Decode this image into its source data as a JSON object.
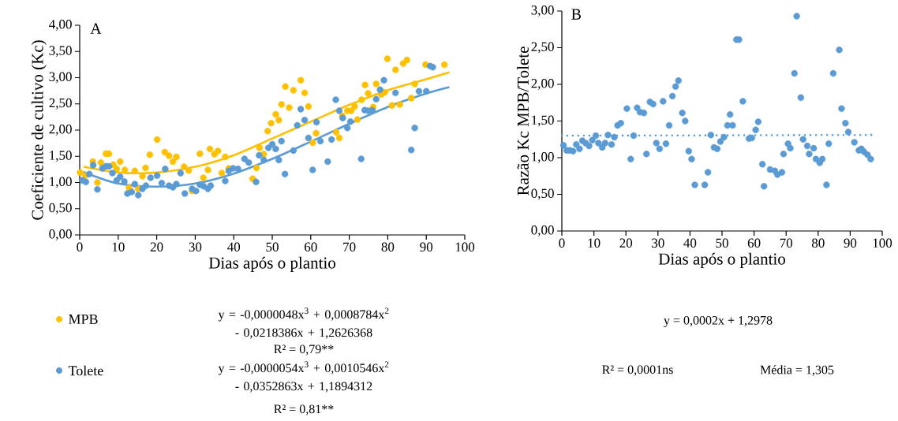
{
  "chart_data": [
    {
      "type": "scatter",
      "title": "A",
      "xlabel": "Dias após o plantio",
      "ylabel": "Coeficiente de cultivo (Kc)",
      "legend": "bottom",
      "xlim": [
        0,
        100
      ],
      "ylim": [
        0,
        4
      ],
      "xticks": [
        0,
        10,
        20,
        30,
        40,
        50,
        60,
        70,
        80,
        90,
        100
      ],
      "yticks": [
        {
          "value": 0,
          "label": "0,00"
        },
        {
          "value": 0.5,
          "label": "0,50"
        },
        {
          "value": 1,
          "label": "1,00"
        },
        {
          "value": 1.5,
          "label": "1,50"
        },
        {
          "value": 2,
          "label": "2,00"
        },
        {
          "value": 2.5,
          "label": "2,50"
        },
        {
          "value": 3,
          "label": "3,00"
        },
        {
          "value": 3.5,
          "label": "3,50"
        },
        {
          "value": 4,
          "label": "4,00"
        }
      ],
      "annotations": [
        "y = -0,0000048x$^{3}$ + 0,0008784x$^{2}$ - 0,0218386x + 1,2626368",
        "R² = 0,79**",
        "y = -0,0000054x$^{3}$ + 0,0010546x$^{2}$ - 0,0352863x + 1,1894312",
        "R² = 0,81**"
      ],
      "series": [
        {
          "name": "MPB",
          "marker": "circle",
          "color": "#ffc000",
          "x": [
            0.1,
            1.5,
            3.4,
            4.6,
            5.5,
            6.8,
            7.6,
            8.7,
            9.6,
            10.5,
            11.7,
            12.8,
            14.3,
            15.2,
            16.3,
            17.1,
            18.2,
            20.1,
            22.1,
            23.2,
            24.2,
            25.1,
            27.1,
            28.3,
            29.2,
            31.2,
            32.1,
            33.3,
            33.8,
            35.0,
            35.9,
            36.9,
            37.8,
            38.7,
            44.9,
            45.9,
            46.7,
            47.8,
            48.8,
            49.7,
            50.9,
            51.7,
            52.4,
            53.4,
            54.4,
            55.5,
            57.4,
            58.4,
            59.4,
            60.5,
            61.4,
            66.6,
            67.4,
            68.2,
            69.5,
            70.5,
            71.4,
            72.1,
            73.2,
            74.1,
            74.9,
            76.2,
            77.0,
            78.3,
            79.2,
            79.9,
            81.1,
            82.0,
            83.1,
            84.0,
            85.0,
            86.1,
            87.0,
            89.8,
            94.7
          ],
          "values": [
            1.19,
            1.13,
            1.4,
            1.0,
            1.38,
            1.55,
            1.55,
            1.34,
            1.26,
            1.4,
            1.24,
            0.9,
            1.22,
            0.88,
            1.12,
            1.28,
            1.53,
            1.82,
            1.58,
            1.51,
            1.4,
            1.49,
            1.3,
            1.23,
            0.84,
            1.55,
            1.09,
            1.24,
            1.64,
            1.54,
            1.6,
            1.18,
            1.49,
            1.27,
            1.07,
            1.28,
            1.66,
            1.54,
            1.98,
            2.13,
            2.3,
            2.19,
            2.49,
            2.83,
            2.43,
            2.76,
            2.95,
            2.71,
            2.45,
            1.76,
            1.94,
            1.96,
            1.85,
            2.27,
            2.37,
            2.37,
            2.45,
            2.2,
            2.58,
            2.86,
            2.7,
            2.44,
            2.88,
            2.68,
            2.72,
            3.36,
            2.47,
            3.15,
            2.49,
            3.27,
            3.34,
            2.61,
            2.88,
            3.25,
            3.25
          ]
        },
        {
          "name": "Tolete",
          "marker": "circle",
          "color": "#5b9bd5",
          "x": [
            0.7,
            1.6,
            2.5,
            3.5,
            4.6,
            5.9,
            6.8,
            7.6,
            8.5,
            9.6,
            10.5,
            11.6,
            12.4,
            13.5,
            14.3,
            15.2,
            16.3,
            17.2,
            18.4,
            20.1,
            21.3,
            22.2,
            23.2,
            24.2,
            25.1,
            26.2,
            27.3,
            29.2,
            30.2,
            31.2,
            32.2,
            33.3,
            34.0,
            37.8,
            38.7,
            39.8,
            41.1,
            42.8,
            43.9,
            45.8,
            46.6,
            47.8,
            49.0,
            50.0,
            50.9,
            51.7,
            52.4,
            53.3,
            55.5,
            56.5,
            57.4,
            58.4,
            59.4,
            60.5,
            61.5,
            62.5,
            64.4,
            65.4,
            66.5,
            67.4,
            68.3,
            69.5,
            70.3,
            73.1,
            74.0,
            74.9,
            76.0,
            77.0,
            78.0,
            79.0,
            82.0,
            86.1,
            87.0,
            88.1,
            90.0,
            91.0,
            91.7
          ],
          "values": [
            1.04,
            1.01,
            1.16,
            1.33,
            0.87,
            1.27,
            1.31,
            1.31,
            1.18,
            1.04,
            1.11,
            1.02,
            0.79,
            0.82,
            0.97,
            0.76,
            0.88,
            0.94,
            1.09,
            1.13,
            0.99,
            1.26,
            0.94,
            0.91,
            0.97,
            1.18,
            0.79,
            0.88,
            0.84,
            0.96,
            0.93,
            0.88,
            0.94,
            1.03,
            1.22,
            1.27,
            1.26,
            1.45,
            1.38,
            1.01,
            1.52,
            1.43,
            1.66,
            1.73,
            1.64,
            1.43,
            1.79,
            1.16,
            1.61,
            2.09,
            2.4,
            2.19,
            1.85,
            1.24,
            2.15,
            1.79,
            1.4,
            1.82,
            2.58,
            2.37,
            2.23,
            2.04,
            2.16,
            1.45,
            2.38,
            2.37,
            2.38,
            2.59,
            2.77,
            2.95,
            2.71,
            1.62,
            2.04,
            2.74,
            2.74,
            3.22,
            3.2
          ]
        },
        {
          "type": "line",
          "marker": "none",
          "line_style": "solid",
          "color": "#ffc000",
          "x": [
            1,
            10,
            20,
            30,
            40,
            50,
            60,
            70,
            80,
            90,
            96
          ],
          "values": [
            1.3,
            1.19,
            1.19,
            1.3,
            1.52,
            1.84,
            2.16,
            2.48,
            2.76,
            2.97,
            3.1
          ]
        },
        {
          "type": "line",
          "marker": "none",
          "line_style": "solid",
          "color": "#5b9bd5",
          "x": [
            1,
            10,
            20,
            30,
            40,
            50,
            60,
            70,
            80,
            90,
            96
          ],
          "values": [
            1.2,
            0.98,
            0.92,
            0.98,
            1.17,
            1.45,
            1.78,
            2.12,
            2.44,
            2.7,
            2.82
          ]
        }
      ]
    },
    {
      "type": "scatter",
      "title": "B",
      "xlabel": "Dias após o plantio",
      "ylabel": "Razão Kc MPB/Tolete",
      "xlim": [
        0,
        100
      ],
      "ylim": [
        0,
        3
      ],
      "xticks": [
        0,
        10,
        20,
        30,
        40,
        50,
        60,
        70,
        80,
        90,
        100
      ],
      "yticks": [
        {
          "value": 0,
          "label": "0,00"
        },
        {
          "value": 0.5,
          "label": "0,50"
        },
        {
          "value": 1,
          "label": "1,00"
        },
        {
          "value": 1.5,
          "label": "1,50"
        },
        {
          "value": 2,
          "label": "2,00"
        },
        {
          "value": 2.5,
          "label": "2,50"
        },
        {
          "value": 3,
          "label": "3,00"
        }
      ],
      "annotations": [
        "y = 0,0002x + 1,2978",
        "R² = 0,0001ns",
        "Média = 1,305"
      ],
      "series": [
        {
          "marker": "circle",
          "color": "#5b9bd5",
          "x": [
            0.5,
            1.5,
            2.5,
            3.5,
            4.5,
            5.5,
            6.4,
            7.4,
            8.5,
            9.5,
            10.6,
            11.4,
            12.6,
            13.5,
            14.4,
            15.5,
            16.4,
            17.4,
            18.4,
            20.3,
            21.5,
            22.4,
            23.5,
            24.4,
            25.6,
            26.4,
            27.5,
            28.5,
            29.5,
            30.5,
            31.6,
            32.5,
            33.5,
            34.5,
            35.5,
            36.4,
            37.6,
            38.5,
            39.6,
            40.5,
            41.5,
            44.6,
            45.6,
            46.5,
            47.5,
            48.5,
            49.5,
            50.6,
            51.7,
            52.5,
            53.3,
            54.5,
            55.3,
            56.5,
            58.4,
            59.3,
            60.5,
            61.3,
            62.6,
            63.1,
            65.0,
            66.5,
            67.3,
            68.7,
            69.2,
            70.6,
            71.3,
            72.6,
            73.3,
            74.6,
            75.3,
            76.6,
            77.2,
            78.6,
            79.3,
            80.5,
            81.3,
            82.6,
            83.3,
            84.7,
            86.6,
            87.3,
            88.5,
            89.4,
            91.3,
            92.7,
            93.5,
            94.3,
            95.4,
            96.4
          ],
          "values": [
            1.17,
            1.1,
            1.1,
            1.09,
            1.18,
            1.12,
            1.23,
            1.2,
            1.16,
            1.24,
            1.3,
            1.2,
            1.14,
            1.2,
            1.31,
            1.18,
            1.28,
            1.44,
            1.47,
            1.67,
            0.98,
            1.3,
            1.68,
            1.62,
            1.61,
            1.05,
            1.76,
            1.73,
            1.2,
            1.12,
            1.77,
            1.19,
            1.44,
            1.84,
            1.97,
            2.05,
            1.61,
            1.5,
            1.09,
            0.98,
            0.63,
            0.63,
            0.8,
            1.31,
            1.14,
            1.12,
            1.22,
            1.28,
            1.44,
            1.59,
            1.44,
            2.61,
            2.61,
            1.77,
            1.26,
            1.27,
            1.38,
            1.49,
            0.91,
            0.61,
            0.84,
            0.82,
            0.77,
            0.8,
            1.05,
            1.19,
            1.13,
            2.15,
            2.93,
            1.82,
            1.25,
            1.16,
            1.05,
            1.13,
            0.98,
            0.93,
            0.98,
            0.63,
            1.19,
            2.15,
            2.47,
            1.67,
            1.47,
            1.35,
            1.21,
            1.1,
            1.12,
            1.08,
            1.04,
            0.98
          ]
        },
        {
          "type": "line",
          "marker": "none",
          "line_style": "dotted",
          "color": "#5b9bd5",
          "x": [
            0,
            97
          ],
          "values": [
            1.3,
            1.31
          ]
        }
      ]
    }
  ]
}
